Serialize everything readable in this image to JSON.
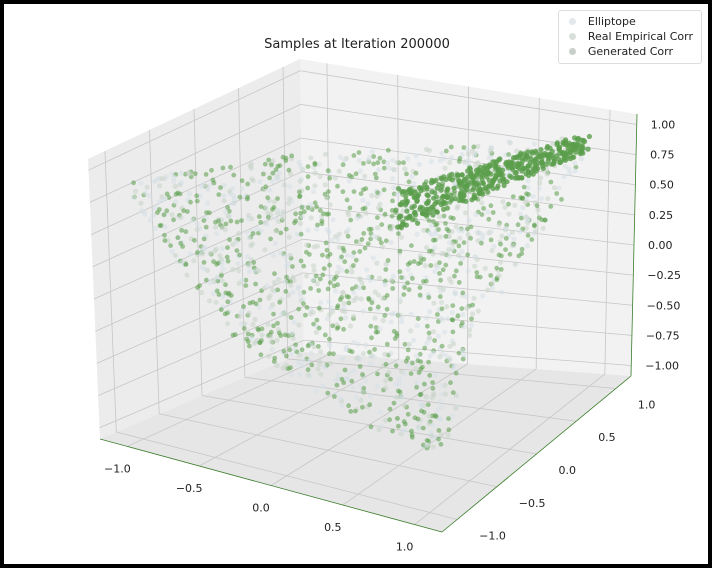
{
  "chart_data": {
    "type": "scatter",
    "title": "Samples at Iteration 200000",
    "axes": {
      "x": {
        "ticks": [
          "−1.0",
          "−0.5",
          "0.0",
          "0.5",
          "1.0"
        ],
        "lim": [
          -1,
          1
        ]
      },
      "y": {
        "ticks": [
          "−1.0",
          "−0.5",
          "0.0",
          "0.5",
          "1.0"
        ],
        "lim": [
          -1,
          1
        ]
      },
      "z": {
        "ticks": [
          "−1.00",
          "−0.75",
          "−0.50",
          "−0.25",
          "0.00",
          "0.25",
          "0.50",
          "0.75",
          "1.00"
        ],
        "lim": [
          -1,
          1
        ]
      }
    },
    "grid": true,
    "legend_position": "top-right",
    "series": [
      {
        "name": "Elliptope",
        "color": "#d6e0e6"
      },
      {
        "name": "Real Empirical Corr",
        "color": "#c9d4c9"
      },
      {
        "name": "Generated Corr",
        "color": "#5a9e4b"
      }
    ]
  }
}
